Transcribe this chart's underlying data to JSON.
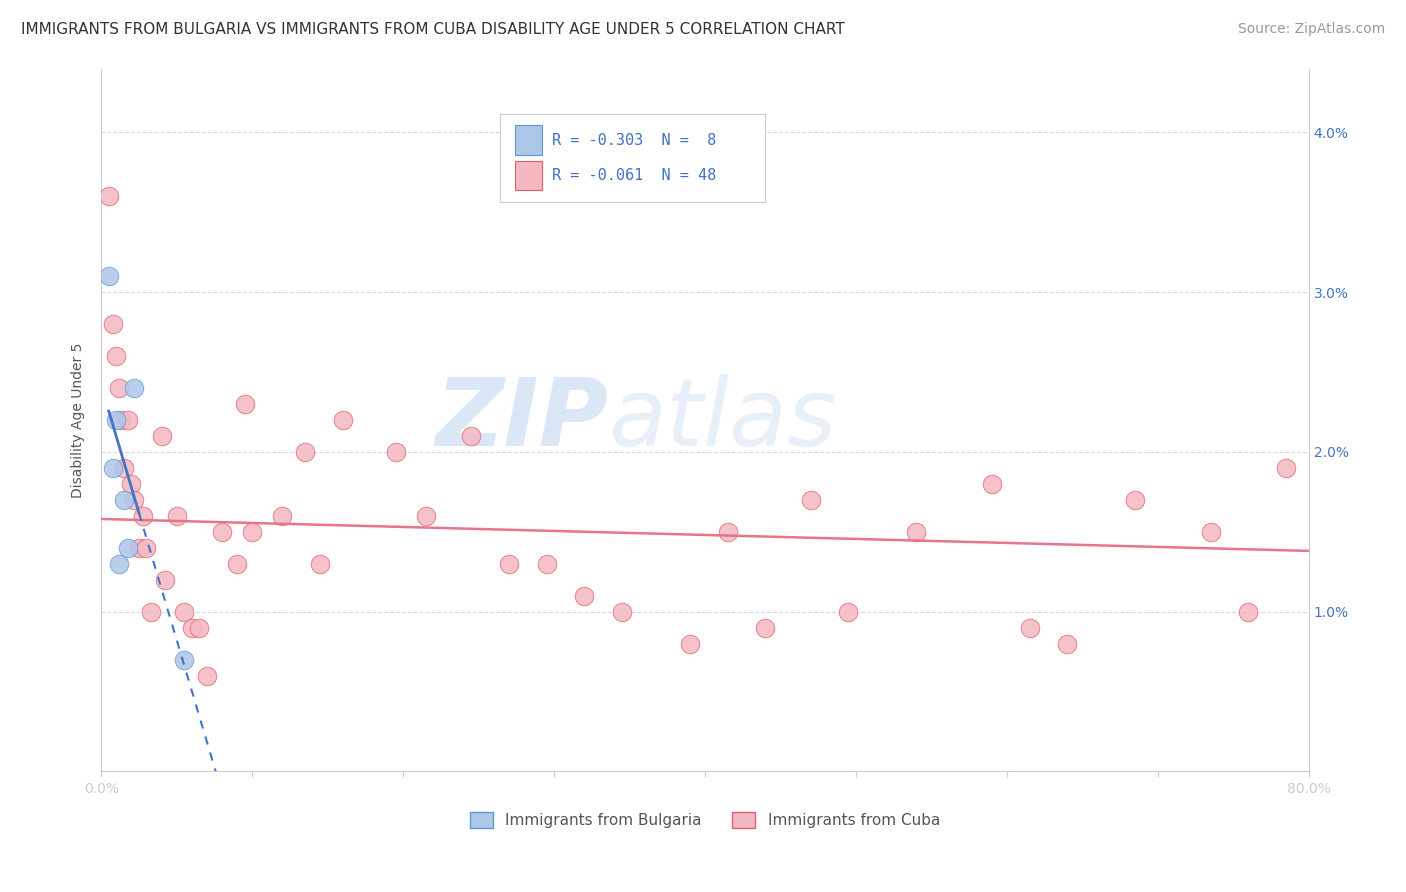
{
  "title": "IMMIGRANTS FROM BULGARIA VS IMMIGRANTS FROM CUBA DISABILITY AGE UNDER 5 CORRELATION CHART",
  "source": "Source: ZipAtlas.com",
  "ylabel": "Disability Age Under 5",
  "xlim": [
    0.0,
    0.8
  ],
  "ylim": [
    0.0,
    0.044
  ],
  "x_ticks": [
    0.0,
    0.1,
    0.2,
    0.3,
    0.4,
    0.5,
    0.6,
    0.7,
    0.8
  ],
  "x_tick_labels": [
    "0.0%",
    "",
    "",
    "",
    "",
    "",
    "",
    "",
    "80.0%"
  ],
  "y_ticks_right": [
    0.01,
    0.02,
    0.03,
    0.04
  ],
  "y_tick_labels_right": [
    "1.0%",
    "2.0%",
    "3.0%",
    "4.0%"
  ],
  "bg_color": "#ffffff",
  "grid_color": "#d8d8d8",
  "watermark_zip": "ZIP",
  "watermark_atlas": "atlas",
  "bulgaria_color": "#aec6e8",
  "cuba_color": "#f4b8c1",
  "bulgaria_edge": "#5b9bd5",
  "cuba_edge": "#e06070",
  "bulgaria_points_x": [
    0.005,
    0.008,
    0.01,
    0.012,
    0.015,
    0.018,
    0.022,
    0.055
  ],
  "bulgaria_points_y": [
    0.031,
    0.019,
    0.022,
    0.013,
    0.017,
    0.014,
    0.024,
    0.007
  ],
  "cuba_points_x": [
    0.005,
    0.008,
    0.01,
    0.012,
    0.013,
    0.015,
    0.018,
    0.02,
    0.022,
    0.025,
    0.028,
    0.03,
    0.033,
    0.04,
    0.042,
    0.05,
    0.055,
    0.06,
    0.065,
    0.07,
    0.08,
    0.09,
    0.095,
    0.1,
    0.12,
    0.135,
    0.145,
    0.16,
    0.195,
    0.215,
    0.245,
    0.27,
    0.295,
    0.32,
    0.345,
    0.39,
    0.415,
    0.44,
    0.47,
    0.495,
    0.54,
    0.59,
    0.615,
    0.64,
    0.685,
    0.735,
    0.76,
    0.785
  ],
  "cuba_points_y": [
    0.036,
    0.028,
    0.026,
    0.024,
    0.022,
    0.019,
    0.022,
    0.018,
    0.017,
    0.014,
    0.016,
    0.014,
    0.01,
    0.021,
    0.012,
    0.016,
    0.01,
    0.009,
    0.009,
    0.006,
    0.015,
    0.013,
    0.023,
    0.015,
    0.016,
    0.02,
    0.013,
    0.022,
    0.02,
    0.016,
    0.021,
    0.013,
    0.013,
    0.011,
    0.01,
    0.008,
    0.015,
    0.009,
    0.017,
    0.01,
    0.015,
    0.018,
    0.009,
    0.008,
    0.017,
    0.015,
    0.01,
    0.019
  ],
  "bulgaria_line_color": "#4472c4",
  "cuba_line_color": "#e8748a",
  "title_fontsize": 11,
  "axis_label_fontsize": 10,
  "tick_fontsize": 10,
  "legend_fontsize": 11,
  "source_fontsize": 10
}
